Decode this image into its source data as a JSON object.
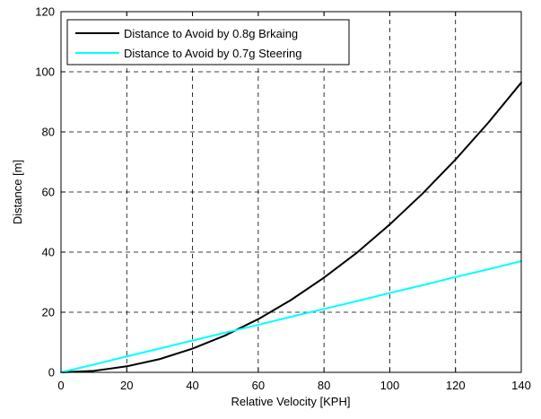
{
  "chart_data": {
    "type": "line",
    "title": "",
    "xlabel": "Relative Velocity [KPH]",
    "ylabel": "Distance [m]",
    "xlim": [
      0,
      140
    ],
    "ylim": [
      0,
      120
    ],
    "xticks": [
      0,
      20,
      40,
      60,
      80,
      100,
      120,
      140
    ],
    "yticks": [
      0,
      20,
      40,
      60,
      80,
      100,
      120
    ],
    "xtick_labels": [
      "0",
      "20",
      "40",
      "60",
      "80",
      "100",
      "120",
      "140"
    ],
    "ytick_labels": [
      "0",
      "20",
      "40",
      "60",
      "80",
      "100",
      "120"
    ],
    "grid": true,
    "legend_position": "top-left",
    "x": [
      0,
      10,
      20,
      30,
      40,
      50,
      60,
      70,
      80,
      90,
      100,
      110,
      120,
      130,
      140
    ],
    "series": [
      {
        "name": "Distance to Avoid by 0.8g Brkaing",
        "color": "#000000",
        "values": [
          0,
          0.5,
          2.0,
          4.4,
          7.9,
          12.3,
          17.7,
          24.1,
          31.5,
          39.8,
          49.2,
          59.5,
          70.8,
          83.1,
          96.4
        ]
      },
      {
        "name": "Distance to Avoid by 0.7g Steering",
        "color": "#00ffff",
        "values": [
          0,
          2.6,
          5.3,
          7.9,
          10.6,
          13.2,
          15.8,
          18.5,
          21.1,
          23.7,
          26.4,
          29.0,
          31.7,
          34.3,
          37.0
        ]
      }
    ]
  }
}
